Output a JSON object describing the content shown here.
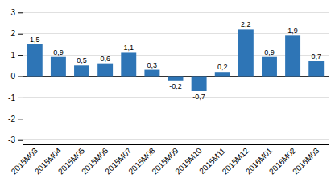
{
  "chart_data": {
    "type": "bar",
    "categories": [
      "2015M03",
      "2015M04",
      "2015M05",
      "2015M06",
      "2015M07",
      "2015M08",
      "2015M09",
      "2015M10",
      "2015M11",
      "2015M12",
      "2016M01",
      "2016M02",
      "2016M03"
    ],
    "values": [
      1.5,
      0.9,
      0.5,
      0.6,
      1.1,
      0.3,
      -0.2,
      -0.7,
      0.2,
      2.2,
      0.9,
      1.9,
      0.7
    ],
    "value_labels": [
      "1,5",
      "0,9",
      "0,5",
      "0,6",
      "1,1",
      "0,3",
      "-0,2",
      "-0,7",
      "0,2",
      "2,2",
      "0,9",
      "1,9",
      "0,7"
    ],
    "color": "#2e75b6",
    "ylim": [
      -3.2,
      3.2
    ],
    "yticks": [
      -3,
      -2,
      -1,
      0,
      1,
      2,
      3
    ],
    "grid": true,
    "data_labels": true
  }
}
